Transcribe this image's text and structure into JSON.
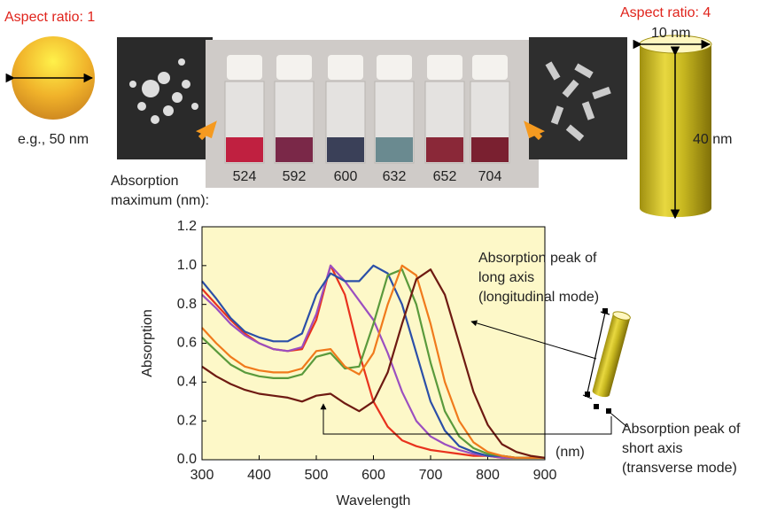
{
  "chart_data": {
    "type": "line",
    "x_label": "Wavelength",
    "y_label": "Absorption",
    "x_unit": "(nm)",
    "x": [
      300,
      325,
      350,
      375,
      400,
      425,
      450,
      475,
      500,
      525,
      550,
      575,
      600,
      625,
      650,
      675,
      700,
      725,
      750,
      775,
      800,
      825,
      850,
      875,
      900
    ],
    "series": [
      {
        "color": "#e8321e",
        "values": [
          0.88,
          0.8,
          0.72,
          0.65,
          0.6,
          0.57,
          0.56,
          0.57,
          0.72,
          1.0,
          0.85,
          0.55,
          0.3,
          0.17,
          0.1,
          0.07,
          0.05,
          0.04,
          0.03,
          0.02,
          0.02,
          0.01,
          0.01,
          0.01,
          0.01
        ]
      },
      {
        "color": "#9b4fc0",
        "values": [
          0.85,
          0.78,
          0.7,
          0.64,
          0.6,
          0.57,
          0.56,
          0.58,
          0.75,
          1.0,
          0.92,
          0.82,
          0.72,
          0.55,
          0.35,
          0.2,
          0.12,
          0.08,
          0.05,
          0.03,
          0.02,
          0.01,
          0.01,
          0.01,
          0.01
        ]
      },
      {
        "color": "#2b4fa8",
        "values": [
          0.92,
          0.83,
          0.73,
          0.66,
          0.63,
          0.61,
          0.61,
          0.65,
          0.85,
          0.96,
          0.92,
          0.92,
          1.0,
          0.96,
          0.8,
          0.55,
          0.3,
          0.15,
          0.07,
          0.04,
          0.02,
          0.02,
          0.01,
          0.01,
          0.01
        ]
      },
      {
        "color": "#5a9a3c",
        "values": [
          0.63,
          0.56,
          0.49,
          0.45,
          0.43,
          0.42,
          0.42,
          0.44,
          0.53,
          0.55,
          0.47,
          0.48,
          0.7,
          0.95,
          0.98,
          0.8,
          0.5,
          0.25,
          0.12,
          0.06,
          0.03,
          0.02,
          0.01,
          0.01,
          0.01
        ]
      },
      {
        "color": "#f07a1c",
        "values": [
          0.68,
          0.6,
          0.53,
          0.48,
          0.46,
          0.45,
          0.45,
          0.47,
          0.56,
          0.57,
          0.48,
          0.44,
          0.55,
          0.8,
          1.0,
          0.95,
          0.7,
          0.4,
          0.2,
          0.09,
          0.04,
          0.02,
          0.01,
          0.01,
          0.01
        ]
      },
      {
        "color": "#6e1a12",
        "values": [
          0.48,
          0.43,
          0.39,
          0.36,
          0.34,
          0.33,
          0.32,
          0.3,
          0.33,
          0.34,
          0.29,
          0.25,
          0.3,
          0.45,
          0.7,
          0.93,
          0.98,
          0.85,
          0.6,
          0.35,
          0.18,
          0.08,
          0.04,
          0.02,
          0.01
        ]
      }
    ],
    "xlim": [
      300,
      900
    ],
    "ylim": [
      0,
      1.2
    ],
    "xticks": [
      300,
      400,
      500,
      600,
      700,
      800,
      900
    ],
    "yticks": [
      {
        "value": 0,
        "label": "0.0"
      },
      0.2,
      0.4,
      0.6,
      0.8,
      {
        "value": 1,
        "label": "1.0"
      },
      1.2
    ],
    "background": "#fdf8c8",
    "annotations": {
      "long_axis": [
        "Absorption peak of",
        "long axis",
        "(longitudinal mode)"
      ],
      "short_axis": [
        "Absorption peak of",
        "short axis",
        "(transverse mode)"
      ]
    }
  },
  "sphere": {
    "title": "Aspect ratio: 1",
    "size": "e.g., 50 nm"
  },
  "rod": {
    "title": "Aspect ratio: 4",
    "diameter": "10 nm",
    "length": "40 nm"
  },
  "vials": {
    "caption": [
      "Absorption",
      "maximum (nm):"
    ],
    "maxima": [
      524,
      592,
      600,
      632,
      652,
      704
    ],
    "colors": [
      "#c02040",
      "#7a2848",
      "#3a4058",
      "#6a8a90",
      "#8a2838",
      "#7a2030"
    ]
  }
}
